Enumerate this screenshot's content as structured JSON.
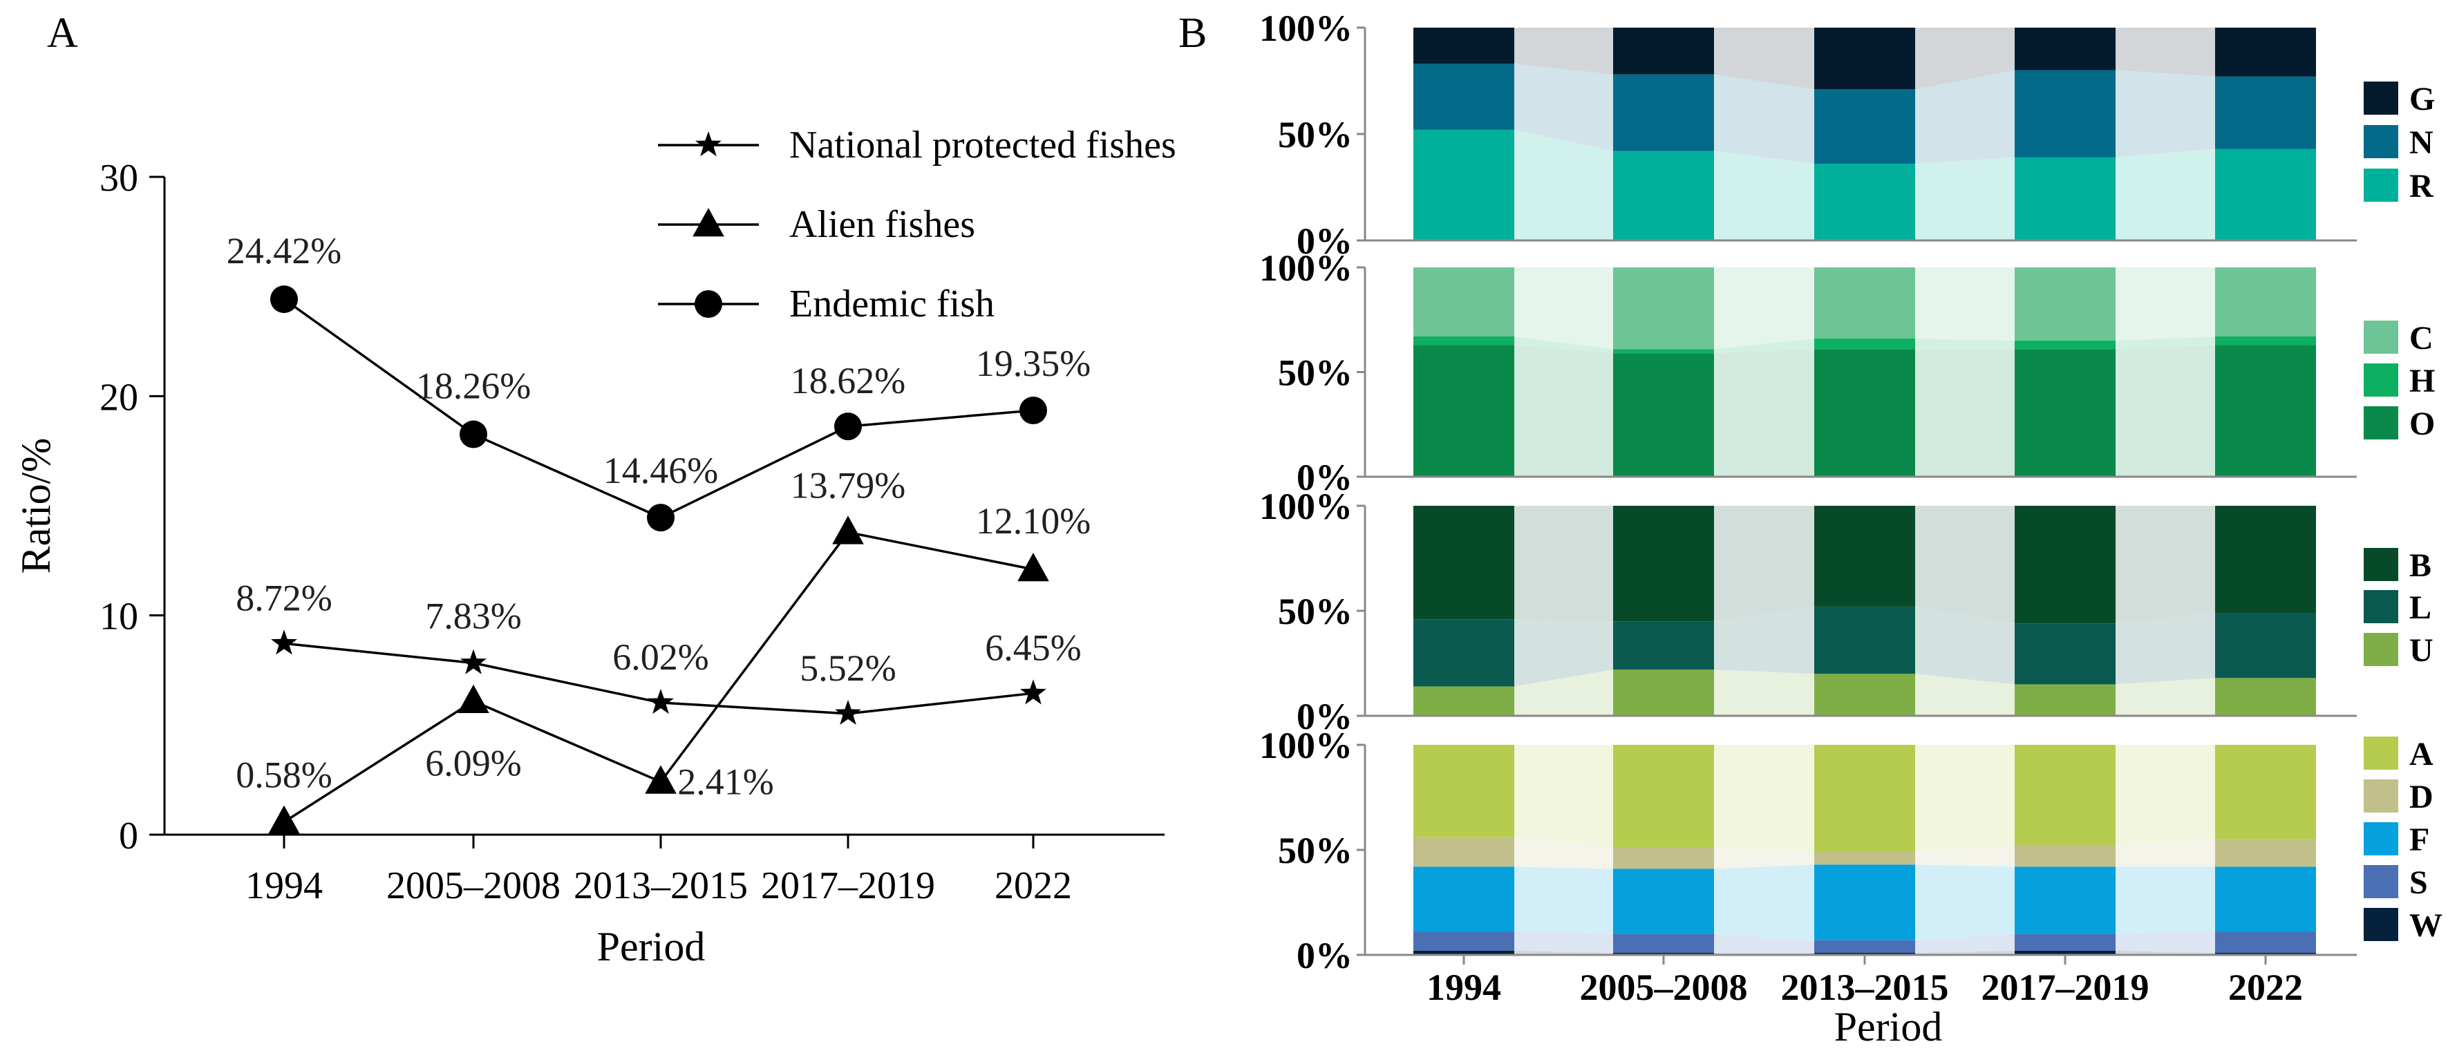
{
  "chart_data": [
    {
      "panel": "A",
      "type": "line",
      "xlabel": "Period",
      "ylabel": "Ratio/%",
      "ylim": [
        0,
        30
      ],
      "yticks": [
        "0",
        "10",
        "20",
        "30"
      ],
      "categories": [
        "1994",
        "2005–2008",
        "2013–2015",
        "2017–2019",
        "2022"
      ],
      "legend_position": "top-right",
      "series": [
        {
          "name": "National protected fishes",
          "marker": "star",
          "values": [
            8.72,
            7.83,
            6.02,
            5.52,
            6.45
          ],
          "labels": [
            "8.72%",
            "7.83%",
            "6.02%",
            "5.52%",
            "6.45%"
          ]
        },
        {
          "name": "Alien fishes",
          "marker": "triangle",
          "values": [
            0.58,
            6.09,
            2.41,
            13.79,
            12.1
          ],
          "labels": [
            "0.58%",
            "6.09%",
            "2.41%",
            "13.79%",
            "12.10%"
          ]
        },
        {
          "name": "Endemic fish",
          "marker": "circle",
          "values": [
            24.42,
            18.26,
            14.46,
            18.62,
            19.35
          ],
          "labels": [
            "24.42%",
            "18.26%",
            "14.46%",
            "18.62%",
            "19.35%"
          ]
        }
      ]
    },
    {
      "panel": "B",
      "type": "bar",
      "stacked": "percent",
      "xlabel": "Period",
      "categories": [
        "1994",
        "2005–2008",
        "2013–2015",
        "2017–2019",
        "2022"
      ],
      "yticks": [
        "0%",
        "50%",
        "100%"
      ],
      "legend_position": "right",
      "subplots": [
        {
          "series": [
            {
              "name": "R",
              "color": "#00b09b",
              "values": [
                52,
                42,
                36,
                39,
                43
              ]
            },
            {
              "name": "N",
              "color": "#046a8a",
              "values": [
                31,
                36,
                35,
                41,
                34
              ]
            },
            {
              "name": "G",
              "color": "#041b2e",
              "values": [
                17,
                22,
                29,
                20,
                23
              ]
            }
          ]
        },
        {
          "series": [
            {
              "name": "O",
              "color": "#0a8a4a",
              "values": [
                63,
                59,
                61,
                61,
                63
              ]
            },
            {
              "name": "H",
              "color": "#0db060",
              "values": [
                4,
                2,
                5,
                4,
                4
              ]
            },
            {
              "name": "C",
              "color": "#6dc596",
              "values": [
                33,
                39,
                34,
                35,
                33
              ]
            }
          ]
        },
        {
          "series": [
            {
              "name": "U",
              "color": "#7fae46",
              "values": [
                14,
                22,
                20,
                15,
                18
              ]
            },
            {
              "name": "L",
              "color": "#0a5a50",
              "values": [
                32,
                23,
                32,
                29,
                31
              ]
            },
            {
              "name": "B",
              "color": "#074a2a",
              "values": [
                54,
                55,
                48,
                56,
                51
              ]
            }
          ]
        },
        {
          "series": [
            {
              "name": "W",
              "color": "#04203a",
              "values": [
                2,
                1,
                1,
                2,
                1
              ]
            },
            {
              "name": "S",
              "color": "#4a6fb5",
              "values": [
                9,
                9,
                6,
                8,
                10
              ]
            },
            {
              "name": "F",
              "color": "#05a0de",
              "values": [
                31,
                31,
                36,
                32,
                31
              ]
            },
            {
              "name": "D",
              "color": "#c2c08a",
              "values": [
                14,
                10,
                6,
                10,
                13
              ]
            },
            {
              "name": "A",
              "color": "#b5cc4e",
              "values": [
                44,
                49,
                51,
                48,
                45
              ]
            }
          ]
        }
      ]
    }
  ]
}
